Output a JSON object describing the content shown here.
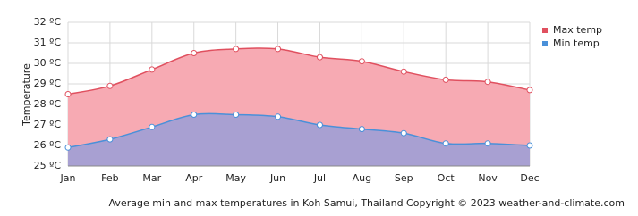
{
  "chart_data": {
    "type": "area",
    "y_label": "Temperature",
    "footer": "Average min and max temperatures in Koh Samui, Thailand   Copyright © 2023  weather-and-climate.com",
    "categories": [
      "Jan",
      "Feb",
      "Mar",
      "Apr",
      "May",
      "Jun",
      "Jul",
      "Aug",
      "Sep",
      "Oct",
      "Nov",
      "Dec"
    ],
    "series": [
      {
        "name": "Max temp",
        "color": "#e0505f",
        "fill_color": "#f7aab3",
        "values": [
          28.5,
          28.9,
          29.7,
          30.5,
          30.7,
          30.7,
          30.3,
          30.1,
          29.6,
          29.2,
          29.1,
          28.7
        ]
      },
      {
        "name": "Min temp",
        "color": "#4a90d9",
        "fill_color": "#a8a0d2",
        "values": [
          25.9,
          26.3,
          26.9,
          27.5,
          27.5,
          27.4,
          27.0,
          26.8,
          26.6,
          26.1,
          26.1,
          26.0
        ]
      }
    ],
    "ylim": [
      25,
      32
    ],
    "yticks": [
      {
        "value": 25,
        "label": "25 ºC"
      },
      {
        "value": 26,
        "label": "26 ºC"
      },
      {
        "value": 27,
        "label": "27 ºC"
      },
      {
        "value": 28,
        "label": "28 ºC"
      },
      {
        "value": 29,
        "label": "29 ºC"
      },
      {
        "value": 30,
        "label": "30 ºC"
      },
      {
        "value": 31,
        "label": "31 ºC"
      },
      {
        "value": 32,
        "label": "32 ºC"
      }
    ],
    "grid": true
  }
}
